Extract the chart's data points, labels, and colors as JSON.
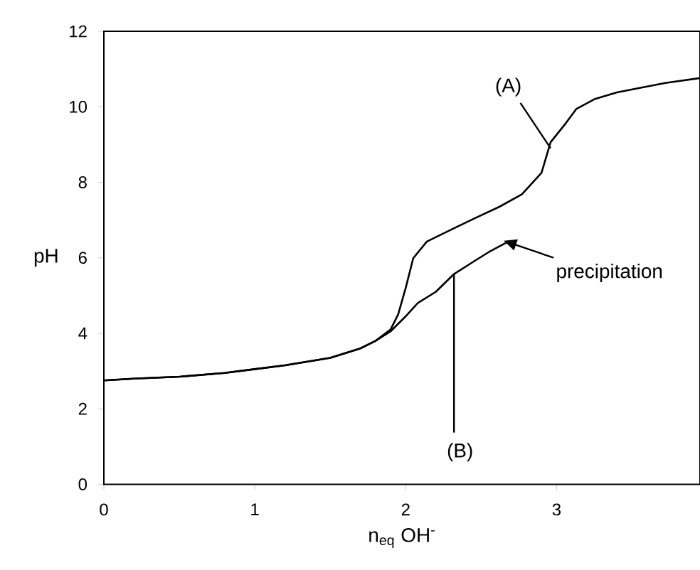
{
  "chart_data": {
    "type": "line",
    "xlabel": "n$_{eq}$ OH$^{-}$",
    "ylabel": "pH",
    "xlim": [
      0,
      3.95
    ],
    "ylim": [
      0,
      12
    ],
    "xticks": [
      0,
      1,
      2,
      3
    ],
    "yticks": [
      0,
      2,
      4,
      6,
      8,
      10,
      12
    ],
    "grid": false,
    "marker": "none",
    "line_style": "solid",
    "series": [
      {
        "color": "#000000",
        "x": [
          0,
          0.2,
          0.5,
          0.8,
          1.0,
          1.2,
          1.5,
          1.7,
          1.8,
          1.9,
          1.95,
          2.0,
          2.05,
          2.14,
          2.33,
          2.46,
          2.62,
          2.77,
          2.9,
          2.96,
          3.06,
          3.13,
          3.25,
          3.4,
          3.55,
          3.72,
          3.95
        ],
        "values": [
          2.75,
          2.8,
          2.85,
          2.95,
          3.05,
          3.15,
          3.35,
          3.6,
          3.8,
          4.1,
          4.5,
          5.2,
          5.99,
          6.43,
          6.8,
          7.05,
          7.35,
          7.68,
          8.25,
          9.06,
          9.56,
          9.94,
          10.2,
          10.38,
          10.5,
          10.63,
          10.76
        ]
      },
      {
        "color": "#000000",
        "x": [
          0,
          0.2,
          0.5,
          0.8,
          1.0,
          1.2,
          1.5,
          1.7,
          1.8,
          1.9,
          2.0,
          2.08,
          2.2,
          2.32,
          2.45,
          2.55,
          2.68
        ],
        "values": [
          2.75,
          2.8,
          2.85,
          2.95,
          3.05,
          3.15,
          3.35,
          3.6,
          3.8,
          4.05,
          4.45,
          4.8,
          5.1,
          5.57,
          5.9,
          6.15,
          6.43
        ]
      }
    ],
    "annotations": [
      {
        "text": "(A)",
        "x": 2.96,
        "y": 8.9
      },
      {
        "text": "(B)",
        "x": 2.32,
        "y": 5.57
      },
      {
        "text": "precipitation",
        "x": 2.65,
        "y": 6.45
      }
    ]
  }
}
